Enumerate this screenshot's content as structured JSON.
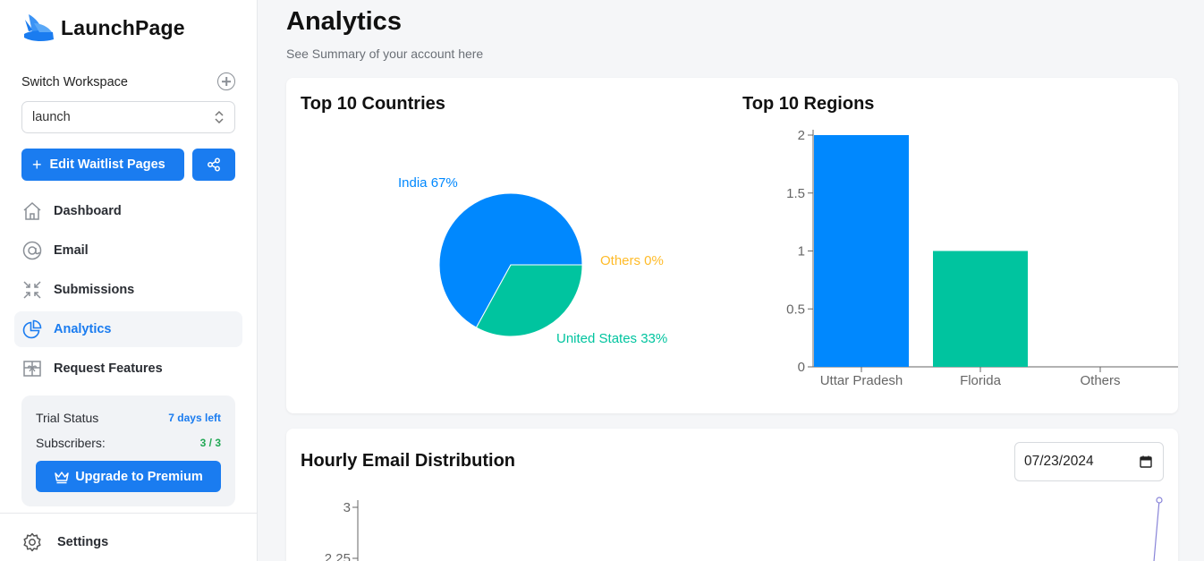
{
  "sidebar": {
    "app_name": "LaunchPage",
    "workspace_label": "Switch Workspace",
    "workspace_value": "launch",
    "edit_button": "Edit Waitlist Pages",
    "nav": [
      {
        "label": "Dashboard",
        "icon": "home-icon"
      },
      {
        "label": "Email",
        "icon": "at-icon"
      },
      {
        "label": "Submissions",
        "icon": "compress-icon"
      },
      {
        "label": "Analytics",
        "icon": "pie-chart-icon",
        "active": true
      },
      {
        "label": "Request Features",
        "icon": "gift-icon"
      }
    ],
    "trial": {
      "status_label": "Trial Status",
      "status_value": "7 days left",
      "subscribers_label": "Subscribers:",
      "subscribers_value": "3 / 3",
      "upgrade_button": "Upgrade to Premium"
    },
    "settings_label": "Settings"
  },
  "main": {
    "title": "Analytics",
    "subtitle": "See Summary of your account here",
    "countries_title": "Top 10 Countries",
    "regions_title": "Top 10 Regions",
    "hourly_title": "Hourly Email Distribution",
    "date_value": "07/23/2024"
  },
  "colors": {
    "accent": "#1a7cf0",
    "blue": "#0088fe",
    "green": "#00c49f",
    "orange": "#ffbb28",
    "line": "#8884d8"
  },
  "chart_data": [
    {
      "type": "pie",
      "title": "Top 10 Countries",
      "slices": [
        {
          "label": "India",
          "value": 67,
          "display": "India 67%",
          "color": "#0088fe"
        },
        {
          "label": "United States",
          "value": 33,
          "display": "United States 33%",
          "color": "#00c49f"
        },
        {
          "label": "Others",
          "value": 0,
          "display": "Others 0%",
          "color": "#ffbb28"
        }
      ]
    },
    {
      "type": "bar",
      "title": "Top 10 Regions",
      "categories": [
        "Uttar Pradesh",
        "Florida",
        "Others"
      ],
      "values": [
        2,
        1,
        0
      ],
      "colors": [
        "#0088fe",
        "#00c49f",
        "#ffbb28"
      ],
      "ylim": [
        0,
        2
      ],
      "yticks": [
        "0",
        "0.5",
        "1",
        "1.5",
        "2"
      ]
    },
    {
      "type": "line",
      "title": "Hourly Email Distribution",
      "yticks_visible": [
        "3",
        "2.25"
      ]
    }
  ]
}
